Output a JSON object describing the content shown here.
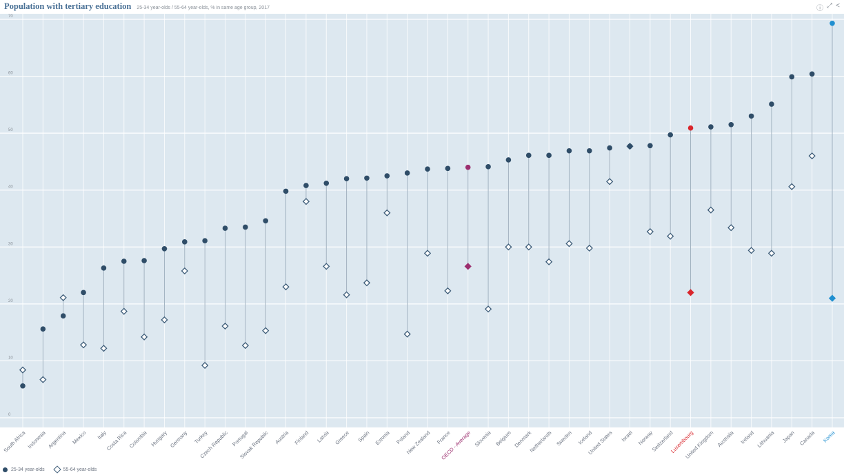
{
  "header": {
    "title": "Population with tertiary education",
    "subtitle": "25-34 year-olds / 55-64 year-olds, % in same age group, 2017",
    "icons": [
      "info-icon",
      "fullscreen-icon",
      "share-icon"
    ],
    "icon_glyphs": [
      "ⓘ",
      "⤢",
      "<"
    ]
  },
  "colors": {
    "plot_bg": "#dde8f0",
    "series_main": "#2f4d68",
    "oecd": "#9c2e6e",
    "luxembourg": "#d9262c",
    "korea": "#1f8fd0",
    "label": "#6b7380"
  },
  "chart_data": {
    "type": "scatter",
    "title": "Population with tertiary education",
    "subtitle": "25-34 year-olds / 55-64 year-olds, % in same age group, 2017",
    "xlabel": "",
    "ylabel": "",
    "ylim": [
      0,
      70
    ],
    "yticks": [
      0,
      10,
      20,
      30,
      40,
      50,
      60,
      70
    ],
    "grid": true,
    "legend": "bottom-left",
    "categories": [
      "South Africa",
      "Indonesia",
      "Argentina",
      "Mexico",
      "Italy",
      "Costa Rica",
      "Colombia",
      "Hungary",
      "Germany",
      "Turkey",
      "Czech Republic",
      "Portugal",
      "Slovak Republic",
      "Austria",
      "Finland",
      "Latvia",
      "Greece",
      "Spain",
      "Estonia",
      "Poland",
      "New Zealand",
      "France",
      "OECD - Average",
      "Slovenia",
      "Belgium",
      "Denmark",
      "Netherlands",
      "Sweden",
      "Iceland",
      "United States",
      "Israel",
      "Norway",
      "Switzerland",
      "Luxembourg",
      "United Kingdom",
      "Australia",
      "Ireland",
      "Lithuania",
      "Japan",
      "Canada",
      "Korea"
    ],
    "highlight": {
      "OECD - Average": "oecd",
      "Luxembourg": "luxembourg",
      "Korea": "korea"
    },
    "series": [
      {
        "name": "25-34 year-olds",
        "marker": "circle",
        "values": [
          5.6,
          15.6,
          17.9,
          22.0,
          26.3,
          27.5,
          27.6,
          29.7,
          30.9,
          31.1,
          33.3,
          33.5,
          34.6,
          39.8,
          40.8,
          41.2,
          42.0,
          42.1,
          42.5,
          43.0,
          43.7,
          43.8,
          44.0,
          44.1,
          45.3,
          46.1,
          46.1,
          46.9,
          46.9,
          47.4,
          47.7,
          47.8,
          49.7,
          50.9,
          51.1,
          51.5,
          53.0,
          55.1,
          59.9,
          60.4,
          69.3
        ]
      },
      {
        "name": "55-64 year-olds",
        "marker": "diamond",
        "values": [
          8.4,
          6.7,
          21.1,
          12.8,
          12.2,
          18.7,
          14.2,
          17.2,
          25.8,
          9.2,
          16.1,
          12.7,
          15.3,
          23.0,
          38.0,
          26.6,
          21.6,
          23.7,
          36.0,
          14.7,
          28.9,
          22.3,
          26.6,
          19.1,
          30.0,
          30.0,
          27.4,
          30.6,
          29.8,
          41.5,
          47.7,
          32.7,
          31.9,
          22.0,
          36.5,
          33.4,
          29.4,
          28.9,
          40.6,
          46.0,
          21.0
        ]
      }
    ]
  },
  "legend": {
    "items": [
      "25-34 year-olds",
      "55-64 year-olds"
    ]
  }
}
